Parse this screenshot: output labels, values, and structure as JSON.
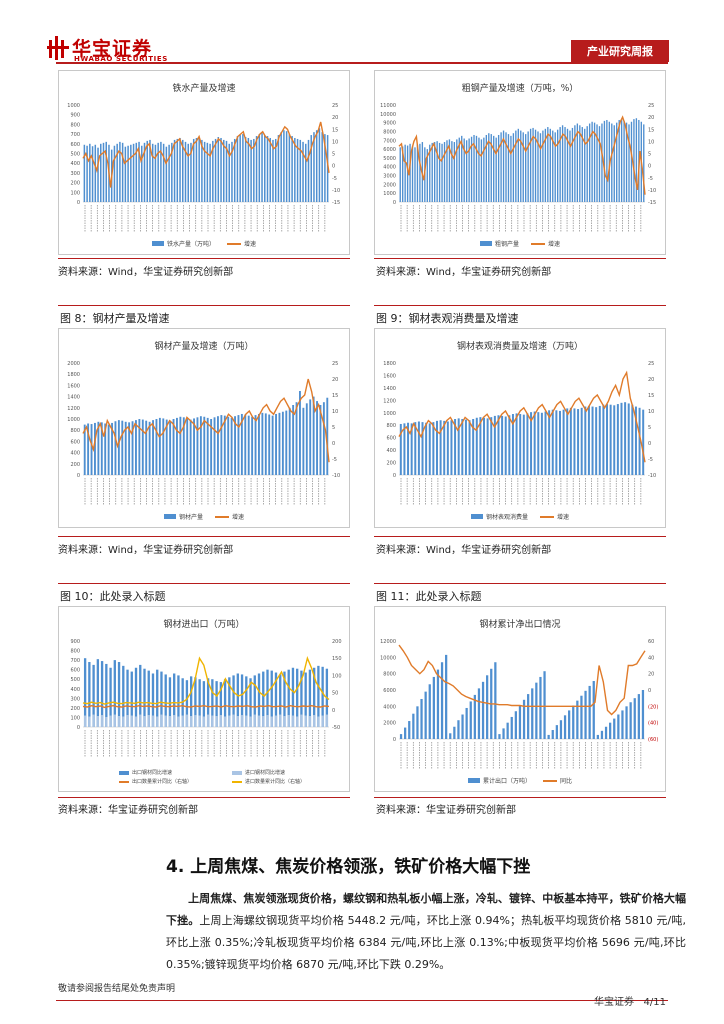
{
  "header": {
    "logo_cn": "华宝证券",
    "logo_en": "HWABAO SECURITIES",
    "tag": "产业研究周报"
  },
  "colors": {
    "accent": "#b71c1c",
    "bar": "#4f8fd0",
    "line": "#e07b2a",
    "line2": "#f0b400"
  },
  "charts": [
    {
      "id": "c1",
      "title": "铁水产量及增速",
      "source": "资料来源：Wind，华宝证券研究创新部",
      "legend": [
        "铁水产量（万吨）",
        "增速"
      ],
      "left_ticks": [
        "0",
        "100",
        "200",
        "300",
        "400",
        "500",
        "600",
        "700",
        "800",
        "900",
        "1000"
      ],
      "right_ticks": [
        "25",
        "20",
        "15",
        "10",
        "5",
        "0",
        "-5",
        "-10",
        "-15"
      ],
      "chart_data": {
        "type": "bar",
        "bar_max": 1000,
        "line_min": -15,
        "line_max": 25,
        "bars": [
          590,
          580,
          600,
          575,
          590,
          560,
          600,
          610,
          620,
          590,
          540,
          580,
          600,
          620,
          610,
          570,
          580,
          590,
          600,
          610,
          620,
          580,
          610,
          630,
          640,
          600,
          590,
          610,
          620,
          600,
          570,
          590,
          610,
          640,
          650,
          660,
          640,
          620,
          600,
          610,
          650,
          660,
          670,
          640,
          620,
          610,
          600,
          630,
          650,
          670,
          660,
          640,
          630,
          600,
          620,
          650,
          680,
          690,
          700,
          670,
          660,
          640,
          650,
          680,
          700,
          710,
          690,
          680,
          660,
          640,
          650,
          690,
          720,
          740,
          730,
          700,
          680,
          660,
          650,
          640,
          620,
          600,
          640,
          690,
          720,
          740,
          760,
          720,
          700,
          690
        ],
        "line": [
          3,
          5,
          2,
          4,
          1,
          -2,
          4,
          5,
          6,
          1,
          -9,
          2,
          4,
          6,
          5,
          1,
          2,
          3,
          4,
          5,
          7,
          2,
          5,
          8,
          9,
          4,
          3,
          5,
          6,
          4,
          1,
          3,
          5,
          9,
          10,
          11,
          8,
          6,
          4,
          5,
          9,
          10,
          12,
          8,
          6,
          5,
          4,
          7,
          9,
          11,
          10,
          8,
          7,
          4,
          6,
          9,
          12,
          13,
          14,
          10,
          9,
          7,
          8,
          11,
          13,
          14,
          12,
          11,
          9,
          7,
          8,
          12,
          14,
          16,
          15,
          12,
          10,
          8,
          7,
          6,
          4,
          2,
          5,
          9,
          12,
          14,
          18,
          12,
          5,
          -3
        ]
      }
    },
    {
      "id": "c2",
      "title": "粗钢产量及增速（万吨，%）",
      "source": "资料来源：Wind，华宝证券研究创新部",
      "legend": [
        "粗钢产量",
        "增速"
      ],
      "left_ticks": [
        "0",
        "1000",
        "2000",
        "3000",
        "4000",
        "5000",
        "6000",
        "7000",
        "8000",
        "9000",
        "10000",
        "11000"
      ],
      "right_ticks": [
        "25",
        "20",
        "15",
        "10",
        "5",
        "0",
        "-5",
        "-10",
        "-15"
      ],
      "chart_data": {
        "type": "bar",
        "bar_max": 11000,
        "line_min": -15,
        "line_max": 25,
        "bars": [
          6200,
          6300,
          6500,
          6400,
          6600,
          6300,
          6200,
          6500,
          6600,
          6800,
          6200,
          6000,
          6500,
          6700,
          6800,
          6900,
          6700,
          6600,
          6800,
          7000,
          7100,
          6900,
          6800,
          7100,
          7300,
          7500,
          7200,
          7000,
          7200,
          7400,
          7600,
          7500,
          7300,
          7100,
          7300,
          7600,
          7800,
          7700,
          7500,
          7300,
          7600,
          7900,
          8100,
          7900,
          7700,
          7500,
          7800,
          8100,
          8300,
          8100,
          7900,
          7700,
          8000,
          8300,
          8400,
          8200,
          8000,
          7800,
          8100,
          8300,
          8500,
          8300,
          8100,
          7900,
          8200,
          8500,
          8700,
          8500,
          8300,
          8100,
          8400,
          8700,
          8900,
          8700,
          8500,
          8300,
          8600,
          8900,
          9100,
          9000,
          8800,
          8600,
          8900,
          9200,
          9300,
          9100,
          8900,
          8700,
          9000,
          9300,
          9400,
          9200,
          9000,
          8800,
          9100,
          9400,
          9500,
          9300,
          9100,
          8800
        ],
        "line": [
          8,
          9,
          2,
          1,
          -4,
          6,
          10,
          12,
          3,
          -2,
          -6,
          3,
          5,
          7,
          9,
          6,
          3,
          2,
          4,
          6,
          8,
          5,
          3,
          6,
          8,
          10,
          7,
          5,
          6,
          8,
          9,
          7,
          5,
          4,
          6,
          8,
          10,
          9,
          7,
          5,
          7,
          9,
          11,
          9,
          7,
          5,
          7,
          9,
          11,
          10,
          8,
          6,
          8,
          10,
          12,
          11,
          9,
          7,
          9,
          11,
          13,
          12,
          10,
          8,
          9,
          11,
          13,
          12,
          10,
          8,
          10,
          12,
          14,
          13,
          11,
          9,
          10,
          12,
          14,
          13,
          11,
          9,
          3,
          -4,
          -6,
          2,
          6,
          10,
          14,
          18,
          20,
          17,
          12,
          8,
          2,
          -5,
          -10,
          6,
          -2,
          -12
        ]
      }
    },
    {
      "id": "c3",
      "figure": "图 8：钢材产量及增速",
      "title": "钢材产量及增速（万吨）",
      "source": "资料来源：Wind，华宝证券研究创新部",
      "legend": [
        "钢材产量",
        "增速"
      ],
      "left_ticks": [
        "0",
        "200",
        "400",
        "600",
        "800",
        "1000",
        "1200",
        "1400",
        "1600",
        "1800",
        "2000"
      ],
      "right_ticks": [
        "25",
        "20",
        "15",
        "10",
        "5",
        "0",
        "-5",
        "-10"
      ],
      "chart_data": {
        "type": "bar",
        "bar_max": 2000,
        "line_min": -10,
        "line_max": 25,
        "bars": [
          900,
          920,
          910,
          930,
          950,
          940,
          920,
          900,
          930,
          960,
          980,
          970,
          950,
          940,
          960,
          980,
          1000,
          990,
          970,
          950,
          980,
          1000,
          1020,
          1010,
          990,
          970,
          1000,
          1020,
          1040,
          1030,
          1010,
          990,
          1010,
          1030,
          1050,
          1040,
          1020,
          1000,
          1030,
          1050,
          1070,
          1060,
          1040,
          1020,
          1050,
          1070,
          1090,
          1080,
          1060,
          1040,
          1070,
          1090,
          1110,
          1100,
          1080,
          1060,
          1090,
          1110,
          1130,
          1150,
          1200,
          1250,
          1300,
          1500,
          1200,
          1280,
          1350,
          1400,
          1320,
          1250,
          1300,
          1380
        ],
        "line": [
          3,
          5,
          1,
          -2,
          4,
          6,
          2,
          7,
          5,
          3,
          -1,
          2,
          4,
          5,
          3,
          6,
          5,
          4,
          3,
          5,
          6,
          4,
          2,
          3,
          5,
          7,
          6,
          4,
          3,
          5,
          8,
          7,
          6,
          4,
          5,
          7,
          6,
          5,
          4,
          3,
          5,
          7,
          9,
          8,
          6,
          5,
          7,
          9,
          10,
          8,
          7,
          9,
          11,
          12,
          10,
          9,
          11,
          13,
          14,
          12,
          10,
          9,
          12,
          14,
          15,
          20,
          16,
          10,
          12,
          8,
          4,
          -6
        ]
      }
    },
    {
      "id": "c4",
      "figure": "图 9：钢材表观消费量及增速",
      "title": "钢材表观消费量及增速（万吨）",
      "source": "资料来源：Wind，华宝证券研究创新部",
      "legend": [
        "钢材表观消费量",
        "增速"
      ],
      "left_ticks": [
        "0",
        "200",
        "400",
        "600",
        "800",
        "1000",
        "1200",
        "1400",
        "1600",
        "1800"
      ],
      "right_ticks": [
        "25",
        "20",
        "15",
        "10",
        "5",
        "0",
        "-5",
        "-10"
      ],
      "chart_data": {
        "type": "bar",
        "bar_max": 1800,
        "line_min": -10,
        "line_max": 25,
        "bars": [
          820,
          830,
          840,
          830,
          850,
          860,
          850,
          840,
          830,
          850,
          870,
          880,
          870,
          860,
          880,
          900,
          910,
          900,
          890,
          880,
          900,
          920,
          930,
          920,
          910,
          930,
          950,
          960,
          950,
          940,
          960,
          980,
          990,
          980,
          970,
          990,
          1010,
          1020,
          1010,
          1000,
          1020,
          1040,
          1050,
          1040,
          1030,
          1050,
          1070,
          1080,
          1070,
          1060,
          1080,
          1100,
          1110,
          1100,
          1090,
          1110,
          1130,
          1140,
          1130,
          1120,
          1140,
          1160,
          1170,
          1150,
          1130,
          1100,
          1080,
          1050
        ],
        "line": [
          2,
          4,
          5,
          3,
          6,
          4,
          2,
          5,
          7,
          6,
          4,
          3,
          5,
          7,
          8,
          6,
          4,
          6,
          8,
          7,
          5,
          4,
          6,
          8,
          9,
          7,
          5,
          7,
          9,
          10,
          8,
          6,
          8,
          10,
          11,
          9,
          7,
          9,
          11,
          12,
          10,
          8,
          10,
          12,
          13,
          11,
          9,
          11,
          13,
          14,
          12,
          10,
          12,
          14,
          15,
          13,
          11,
          13,
          16,
          18,
          15,
          20,
          22,
          14,
          10,
          5,
          0,
          -6
        ]
      }
    },
    {
      "id": "c5",
      "figure": "图 10：此处录入标题",
      "title": "钢材进出口（万吨）",
      "source": "资料来源：华宝证券研究创新部",
      "legend": [
        "出口钢材同比增速",
        "进口钢材同比增速",
        "出口数量累计同比（右轴）",
        "进口数量累计同比（右轴）"
      ],
      "left_ticks": [
        "0",
        "100",
        "200",
        "300",
        "400",
        "500",
        "600",
        "700",
        "800",
        "900"
      ],
      "right_ticks": [
        "200",
        "150",
        "100",
        "50",
        "0",
        "-50"
      ],
      "chart_data": {
        "type": "bar",
        "bar_max": 900,
        "line_min": -50,
        "line_max": 200,
        "bars": [
          720,
          680,
          650,
          710,
          690,
          660,
          620,
          700,
          680,
          640,
          600,
          580,
          620,
          650,
          610,
          590,
          560,
          600,
          580,
          550,
          520,
          560,
          540,
          510,
          490,
          530,
          520,
          500,
          480,
          510,
          500,
          480,
          470,
          500,
          520,
          540,
          560,
          550,
          530,
          510,
          540,
          560,
          580,
          600,
          590,
          570,
          550,
          580,
          600,
          620,
          610,
          590,
          570,
          600,
          620,
          640,
          630,
          610
        ],
        "bars2": [
          120,
          110,
          130,
          115,
          125,
          105,
          120,
          130,
          115,
          110,
          125,
          120,
          110,
          130,
          115,
          125,
          120,
          110,
          130,
          120,
          115,
          125,
          110,
          120,
          130,
          115,
          125,
          120,
          110,
          130,
          120,
          115,
          125,
          110,
          120,
          130,
          115,
          125,
          120,
          110,
          130,
          120,
          115,
          125,
          110,
          120,
          130,
          115,
          125,
          120,
          110,
          130,
          120,
          115,
          125,
          110,
          120,
          130
        ],
        "line": [
          10,
          8,
          12,
          9,
          11,
          7,
          10,
          12,
          9,
          8,
          11,
          10,
          9,
          12,
          10,
          11,
          9,
          8,
          12,
          10,
          9,
          11,
          10,
          12,
          9,
          8,
          11,
          10,
          12,
          9,
          10,
          11,
          8,
          12,
          10,
          9,
          11,
          10,
          12,
          9,
          8,
          11,
          10,
          12,
          9,
          10,
          11,
          8,
          12,
          10,
          9,
          11,
          10,
          12,
          9,
          8,
          11,
          10
        ],
        "line2": [
          20,
          18,
          22,
          19,
          21,
          17,
          20,
          22,
          19,
          18,
          21,
          20,
          19,
          22,
          20,
          21,
          19,
          18,
          22,
          20,
          19,
          21,
          20,
          22,
          30,
          50,
          90,
          150,
          130,
          80,
          50,
          40,
          60,
          90,
          70,
          50,
          40,
          45,
          60,
          80,
          70,
          50,
          40,
          55,
          70,
          90,
          110,
          80,
          60,
          50,
          70,
          100,
          150,
          120,
          80,
          60,
          40,
          30
        ]
      }
    },
    {
      "id": "c6",
      "figure": "图 11：此处录入标题",
      "title": "钢材累计净出口情况",
      "source": "资料来源：华宝证券研究创新部",
      "legend": [
        "累计出口（万吨）",
        "同比"
      ],
      "left_ticks": [
        "0",
        "2000",
        "4000",
        "6000",
        "8000",
        "10000",
        "12000"
      ],
      "right_ticks": [
        "60",
        "40",
        "20",
        "0",
        "(20)",
        "(40)",
        "(60)"
      ],
      "chart_data": {
        "type": "bar",
        "bar_max": 12000,
        "line_min": -60,
        "line_max": 60,
        "bars": [
          600,
          1400,
          2200,
          3100,
          4000,
          4900,
          5800,
          6700,
          7600,
          8500,
          9400,
          10300,
          700,
          1500,
          2300,
          3000,
          3800,
          4600,
          5400,
          6200,
          7000,
          7800,
          8600,
          9400,
          600,
          1300,
          2000,
          2700,
          3400,
          4100,
          4800,
          5500,
          6200,
          6900,
          7600,
          8300,
          500,
          1100,
          1700,
          2300,
          2900,
          3500,
          4100,
          4700,
          5300,
          5900,
          6500,
          7100,
          500,
          1000,
          1500,
          2000,
          2500,
          3000,
          3500,
          4000,
          4500,
          5000,
          5500,
          6000
        ],
        "line": [
          55,
          48,
          40,
          30,
          25,
          20,
          25,
          35,
          30,
          20,
          15,
          10,
          8,
          5,
          0,
          -5,
          -8,
          -10,
          -12,
          -14,
          -15,
          -16,
          -17,
          -17,
          -18,
          -18,
          -18,
          -19,
          -19,
          -19,
          -20,
          -20,
          -20,
          -20,
          -20,
          -20,
          -20,
          -20,
          -20,
          -20,
          -20,
          -20,
          -20,
          -20,
          -20,
          -20,
          -20,
          -15,
          30,
          10,
          -25,
          -30,
          -25,
          -15,
          -10,
          30,
          30,
          32,
          40,
          48
        ]
      }
    }
  ],
  "section": {
    "title": "4. 上周焦煤、焦炭价格领涨，铁矿价格大幅下挫",
    "para_bold": "上周焦煤、焦炭领涨现货价格，螺纹钢和热轧板小幅上涨，冷轧、镀锌、中板基本持平，铁矿价格大幅下挫。",
    "para_rest": "上周上海螺纹钢现货平均价格 5448.2 元/吨，环比上涨 0.94%；热轧板平均现货价格 5810 元/吨,环比上涨 0.35%;冷轧板现货平均价格 6384 元/吨,环比上涨 0.13%;中板现货平均价格 5696 元/吨,环比 0.35%;镀锌现货平均价格 6870 元/吨,环比下跌 0.29%。"
  },
  "footer": {
    "disclaimer": "敬请参阅报告结尾处免责声明",
    "company": "华宝证券",
    "page": "4/11"
  }
}
